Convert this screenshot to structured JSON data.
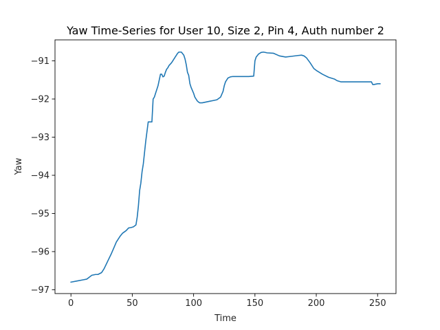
{
  "chart_data": {
    "type": "line",
    "title": "Yaw Time-Series for User 10, Size 2, Pin 4, Auth number 2",
    "xlabel": "Time",
    "ylabel": "Yaw",
    "xlim": [
      -13,
      265
    ],
    "ylim": [
      -97.1,
      -90.45
    ],
    "xticks": [
      0,
      50,
      100,
      150,
      200,
      250
    ],
    "yticks": [
      -97,
      -96,
      -95,
      -94,
      -93,
      -92,
      -91
    ],
    "xtick_labels": [
      "0",
      "50",
      "100",
      "150",
      "200",
      "250"
    ],
    "ytick_labels": [
      "−97",
      "−96",
      "−95",
      "−94",
      "−93",
      "−92",
      "−91"
    ],
    "grid": false,
    "series": [
      {
        "color": "#1f77b4",
        "x": [
          0,
          5,
          10,
          13,
          15,
          17,
          20,
          22,
          25,
          27,
          30,
          33,
          35,
          37,
          40,
          42,
          45,
          47,
          49,
          51,
          53,
          54,
          55,
          56,
          57,
          58,
          59,
          60,
          61,
          62,
          63,
          64,
          65,
          66,
          67,
          68,
          69,
          70,
          71,
          72,
          73,
          74,
          75,
          76,
          77,
          78,
          79,
          80,
          82,
          83,
          85,
          87,
          88,
          90,
          92,
          93,
          94,
          95,
          96,
          97,
          98,
          100,
          101,
          102,
          103,
          104,
          105,
          107,
          110,
          113,
          116,
          119,
          122,
          124,
          125,
          126,
          128,
          130,
          132,
          135,
          140,
          145,
          149,
          150,
          151,
          153,
          155,
          157,
          160,
          165,
          170,
          175,
          180,
          185,
          188,
          190,
          192,
          195,
          198,
          200,
          205,
          210,
          215,
          217,
          220,
          230,
          240,
          245,
          246,
          247,
          250,
          252
        ],
        "values": [
          -96.8,
          -96.77,
          -96.74,
          -96.72,
          -96.67,
          -96.62,
          -96.6,
          -96.6,
          -96.55,
          -96.45,
          -96.25,
          -96.05,
          -95.9,
          -95.75,
          -95.6,
          -95.52,
          -95.45,
          -95.38,
          -95.37,
          -95.35,
          -95.3,
          -95.1,
          -94.8,
          -94.4,
          -94.2,
          -93.9,
          -93.7,
          -93.4,
          -93.1,
          -92.85,
          -92.6,
          -92.6,
          -92.6,
          -92.6,
          -92.0,
          -91.95,
          -91.85,
          -91.75,
          -91.65,
          -91.5,
          -91.35,
          -91.35,
          -91.42,
          -91.4,
          -91.3,
          -91.22,
          -91.18,
          -91.12,
          -91.05,
          -91.0,
          -90.9,
          -90.8,
          -90.77,
          -90.77,
          -90.85,
          -90.95,
          -91.1,
          -91.3,
          -91.38,
          -91.6,
          -91.7,
          -91.85,
          -91.95,
          -92.0,
          -92.05,
          -92.08,
          -92.1,
          -92.1,
          -92.08,
          -92.06,
          -92.04,
          -92.02,
          -91.95,
          -91.8,
          -91.65,
          -91.55,
          -91.45,
          -91.42,
          -91.41,
          -91.41,
          -91.41,
          -91.41,
          -91.4,
          -91.0,
          -90.9,
          -90.82,
          -90.78,
          -90.77,
          -90.79,
          -90.8,
          -90.87,
          -90.9,
          -90.88,
          -90.86,
          -90.85,
          -90.87,
          -90.92,
          -91.05,
          -91.2,
          -91.25,
          -91.35,
          -91.43,
          -91.48,
          -91.52,
          -91.55,
          -91.55,
          -91.55,
          -91.55,
          -91.62,
          -91.62,
          -91.6,
          -91.6
        ]
      }
    ]
  }
}
